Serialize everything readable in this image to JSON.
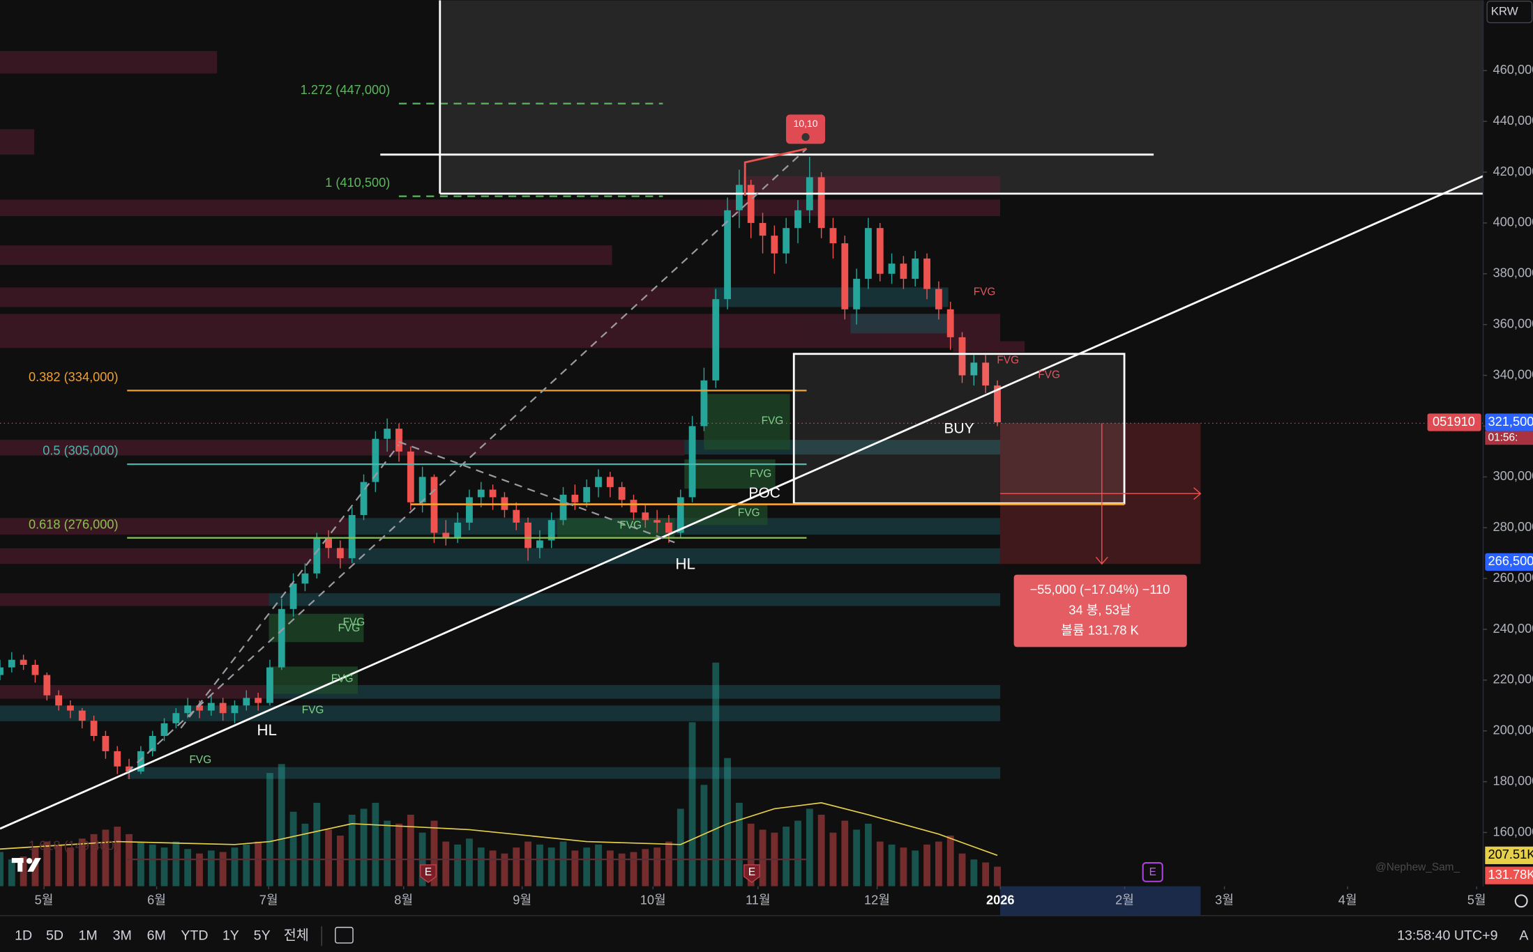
{
  "chart_data": {
    "type": "candlestick",
    "currency": "KRW",
    "symbol": "051910",
    "x": [
      0,
      2,
      4,
      6,
      8,
      10,
      12,
      14,
      16,
      18,
      20,
      22,
      24,
      26,
      28,
      30,
      32,
      34,
      36,
      38,
      40,
      42,
      44,
      46,
      48,
      50,
      52,
      54,
      56,
      58,
      60,
      62,
      64,
      66,
      68,
      70,
      72,
      74,
      76,
      78,
      80,
      82,
      84,
      86,
      88,
      90,
      92,
      94,
      96,
      98,
      100,
      102,
      104,
      106,
      108,
      110,
      112,
      114,
      116,
      118,
      120,
      122,
      124,
      126,
      128,
      130,
      132,
      134,
      136,
      138,
      140,
      142,
      144,
      146,
      148,
      150,
      152,
      154,
      156,
      158,
      160,
      162,
      164,
      166,
      168,
      170
    ],
    "open": [
      222000,
      225000,
      228000,
      226000,
      222000,
      214000,
      210000,
      208000,
      204000,
      198000,
      192000,
      186000,
      184000,
      192000,
      198000,
      203000,
      207000,
      210000,
      208000,
      211000,
      207000,
      210000,
      213000,
      211000,
      225000,
      248000,
      258000,
      262000,
      276000,
      272000,
      268000,
      285000,
      298000,
      315000,
      319000,
      310000,
      290000,
      300000,
      278000,
      276000,
      282000,
      292000,
      295000,
      292000,
      287000,
      282000,
      272000,
      275000,
      283000,
      293000,
      290000,
      296000,
      300000,
      296000,
      291000,
      286000,
      283000,
      282000,
      278000,
      292000,
      320000,
      338000,
      370000,
      405000,
      415000,
      400000,
      395000,
      388000,
      398000,
      405000,
      418000,
      398000,
      392000,
      366000,
      378000,
      398000,
      380000,
      384000,
      378000,
      386000,
      374000,
      366000,
      355000,
      340000,
      345000,
      336000
    ],
    "high": [
      228000,
      231000,
      230000,
      228000,
      223000,
      216000,
      212000,
      209000,
      206000,
      200000,
      194000,
      189000,
      194000,
      200000,
      205000,
      209000,
      213000,
      212000,
      214000,
      213000,
      212000,
      216000,
      215000,
      228000,
      252000,
      262000,
      266000,
      278000,
      279000,
      275000,
      288000,
      301000,
      318000,
      323000,
      321000,
      312000,
      304000,
      301000,
      283000,
      286000,
      295000,
      298000,
      297000,
      294000,
      290000,
      284000,
      279000,
      286000,
      296000,
      297000,
      299000,
      303000,
      302000,
      298000,
      293000,
      289000,
      287000,
      285000,
      295000,
      324000,
      343000,
      374000,
      410000,
      421000,
      417000,
      404000,
      399000,
      402000,
      409000,
      426000,
      420000,
      402000,
      395000,
      382000,
      402000,
      400000,
      388000,
      387000,
      389000,
      388000,
      377000,
      369000,
      357000,
      348000,
      348000,
      338000
    ],
    "low": [
      220000,
      223000,
      224000,
      219000,
      212000,
      208000,
      205000,
      201000,
      196000,
      189000,
      183000,
      181000,
      183000,
      190000,
      196000,
      201000,
      205000,
      205000,
      206000,
      204000,
      203000,
      208000,
      208000,
      210000,
      224000,
      245000,
      255000,
      260000,
      268000,
      264000,
      266000,
      283000,
      294000,
      310000,
      306000,
      287000,
      286000,
      274000,
      273000,
      274000,
      279000,
      288000,
      287000,
      284000,
      279000,
      267000,
      268000,
      272000,
      281000,
      287000,
      288000,
      292000,
      292000,
      288000,
      283000,
      280000,
      278000,
      274000,
      276000,
      290000,
      318000,
      335000,
      366000,
      398000,
      394000,
      388000,
      380000,
      384000,
      392000,
      400000,
      394000,
      386000,
      362000,
      360000,
      374000,
      377000,
      376000,
      374000,
      375000,
      370000,
      362000,
      350000,
      337000,
      336000,
      333000,
      320000
    ],
    "close": [
      225000,
      228000,
      226000,
      222000,
      214000,
      210000,
      208000,
      204000,
      198000,
      192000,
      186000,
      184000,
      192000,
      198000,
      203000,
      207000,
      210000,
      208000,
      211000,
      207000,
      210000,
      213000,
      211000,
      225000,
      248000,
      258000,
      262000,
      276000,
      272000,
      268000,
      285000,
      298000,
      315000,
      319000,
      310000,
      290000,
      300000,
      278000,
      276000,
      282000,
      292000,
      295000,
      292000,
      287000,
      282000,
      272000,
      275000,
      283000,
      293000,
      290000,
      296000,
      300000,
      296000,
      291000,
      286000,
      283000,
      282000,
      278000,
      292000,
      320000,
      338000,
      370000,
      405000,
      415000,
      400000,
      395000,
      388000,
      398000,
      405000,
      418000,
      398000,
      392000,
      366000,
      378000,
      398000,
      380000,
      384000,
      378000,
      386000,
      374000,
      366000,
      355000,
      340000,
      345000,
      336000,
      321500
    ],
    "colors": {
      "up": "#26a69a",
      "down": "#ef5350"
    },
    "grid": false,
    "xlim": [
      0,
      252.8
    ],
    "xticks": [
      {
        "value": 7.5,
        "label": "5월"
      },
      {
        "value": 26.7,
        "label": "6월"
      },
      {
        "value": 45.8,
        "label": "7월"
      },
      {
        "value": 68.8,
        "label": "8월"
      },
      {
        "value": 89,
        "label": "9월"
      },
      {
        "value": 111.3,
        "label": "10월"
      },
      {
        "value": 129.2,
        "label": "11월"
      },
      {
        "value": 149.5,
        "label": "12월"
      },
      {
        "value": 170.5,
        "label": "2026"
      },
      {
        "value": 191.7,
        "label": "2월"
      },
      {
        "value": 208.7,
        "label": "3월"
      },
      {
        "value": 229.7,
        "label": "4월"
      },
      {
        "value": 251.7,
        "label": "5월"
      }
    ],
    "ylim": [
      138800,
      487700
    ],
    "yticks": [
      {
        "value": 160000,
        "label": "160,000"
      },
      {
        "value": 180000,
        "label": "180,000"
      },
      {
        "value": 200000,
        "label": "200,000"
      },
      {
        "value": 220000,
        "label": "220,000"
      },
      {
        "value": 240000,
        "label": "240,000"
      },
      {
        "value": 260000,
        "label": "260,000"
      },
      {
        "value": 280000,
        "label": "280,000"
      },
      {
        "value": 300000,
        "label": "300,000"
      },
      {
        "value": 320000,
        "label": "320,000"
      },
      {
        "value": 340000,
        "label": "340,000"
      },
      {
        "value": 360000,
        "label": "360,000"
      },
      {
        "value": 380000,
        "label": "380,000"
      },
      {
        "value": 400000,
        "label": "400,000"
      },
      {
        "value": 420000,
        "label": "420,000"
      },
      {
        "value": 440000,
        "label": "440,000"
      },
      {
        "value": 460000,
        "label": "460,000"
      }
    ],
    "volume": {
      "values": [
        230,
        180,
        200,
        260,
        300,
        280,
        260,
        320,
        350,
        380,
        400,
        350,
        300,
        280,
        260,
        300,
        250,
        220,
        240,
        230,
        260,
        280,
        300,
        760,
        820,
        500,
        420,
        560,
        380,
        340,
        480,
        520,
        560,
        440,
        420,
        480,
        360,
        440,
        300,
        280,
        320,
        260,
        240,
        220,
        260,
        300,
        280,
        260,
        300,
        240,
        260,
        280,
        240,
        220,
        230,
        250,
        260,
        300,
        520,
        1100,
        680,
        1500,
        860,
        560,
        420,
        380,
        360,
        400,
        440,
        520,
        480,
        360,
        440,
        380,
        420,
        300,
        280,
        260,
        240,
        280,
        300,
        340,
        220,
        180,
        160,
        131.78
      ],
      "ylim": [
        0,
        1500
      ],
      "last_label": "131.78K",
      "ma": {
        "color": "#e6d04a",
        "x": [
          0,
          20,
          40,
          46,
          60,
          80,
          100,
          116,
          124,
          132,
          140,
          148,
          160,
          170
        ],
        "values": [
          250,
          300,
          280,
          300,
          420,
          380,
          300,
          280,
          420,
          520,
          560,
          480,
          350,
          207.51
        ],
        "last_label": "207.51K"
      }
    },
    "last_price": {
      "value": 321500,
      "label": "321,500",
      "countdown": "01:56:"
    },
    "target_price": {
      "value": 266500,
      "label": "266,500"
    },
    "fib_levels": [
      {
        "label": "1.272 (447,000)",
        "value": 447000,
        "color": "#5cb85c",
        "dashed": true
      },
      {
        "label": "1 (410,500)",
        "value": 410500,
        "color": "#5cb85c",
        "dashed": true
      },
      {
        "label": "0.382 (334,000)",
        "value": 334000,
        "color": "#f0a030",
        "dashed": false
      },
      {
        "label": "0.5 (305,000)",
        "value": 305000,
        "color": "#4db6ac",
        "dashed": false
      },
      {
        "label": "0.618 (276,000)",
        "value": 276000,
        "color": "#8bc34a",
        "dashed": false
      },
      {
        "label": "1.618 (149,400)",
        "value": 149400,
        "color": "#5a2e34",
        "dashed": false
      }
    ]
  },
  "annotations": {
    "marker": "10,10",
    "hl": [
      "HL",
      "HL"
    ],
    "buy": "BUY",
    "poc": "POC",
    "fvg_green": [
      "FVG",
      "FVG",
      "FVG",
      "FVG",
      "FVG",
      "FVG",
      "FVG",
      "FVG",
      "FVG"
    ],
    "fvg_red": [
      "FVG",
      "FVG",
      "FVG"
    ],
    "earnings": [
      "E",
      "E",
      "E"
    ],
    "measure": [
      "−55,000 (−17.04%) −110",
      "34 봉, 53날",
      "볼륨 131.78 K"
    ],
    "watermark": "@Nephew_Sam_"
  },
  "toolbar": {
    "ranges": [
      "1D",
      "5D",
      "1M",
      "3M",
      "6M",
      "YTD",
      "1Y",
      "5Y",
      "전체"
    ],
    "clock": "13:58:40 UTC+9",
    "cut": "A"
  }
}
